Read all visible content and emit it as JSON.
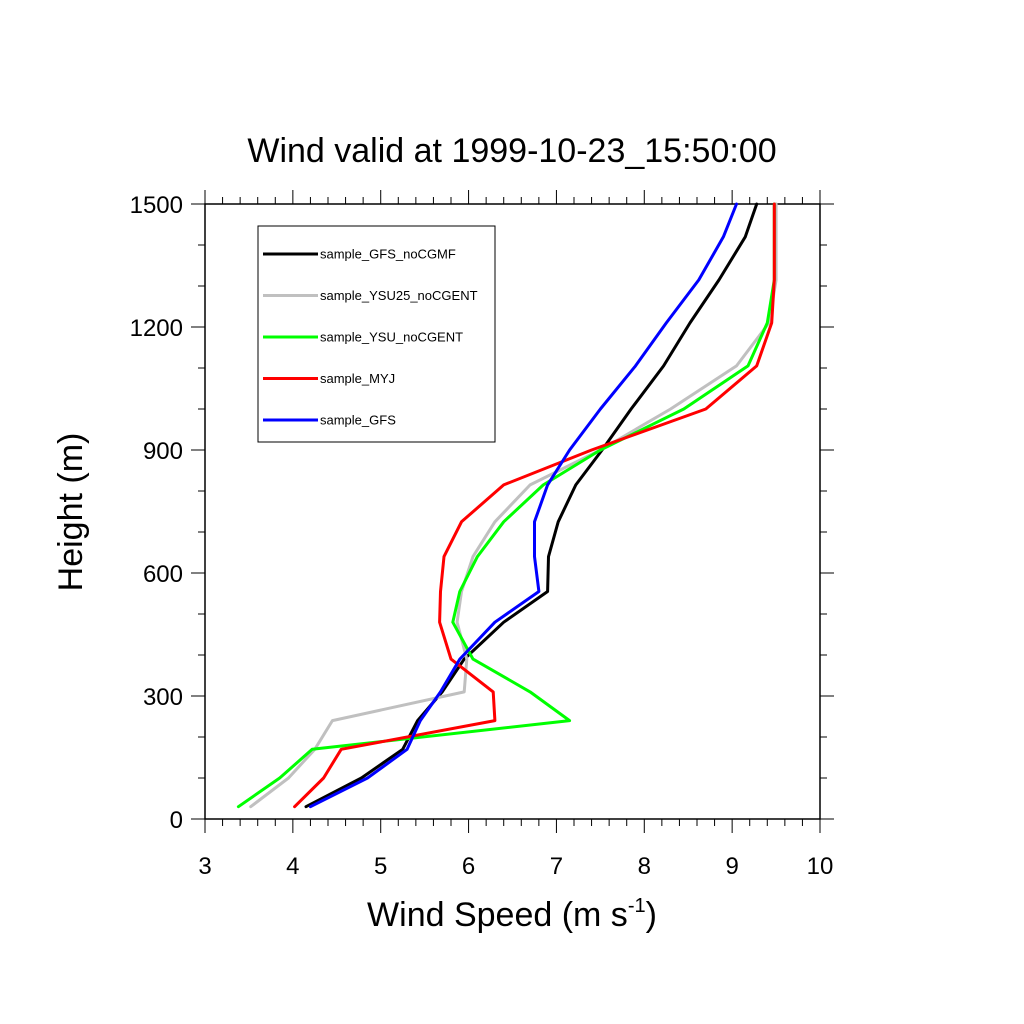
{
  "chart_data": {
    "type": "line",
    "title": "Wind valid at 1999-10-23_15:50:00",
    "xlabel": "Wind Speed (m s",
    "xlabel_sup": "-1",
    "xlabel_close": ")",
    "ylabel": "Height (m)",
    "xlim": [
      3,
      10
    ],
    "ylim": [
      0,
      1500
    ],
    "xticks": [
      3,
      4,
      5,
      6,
      7,
      8,
      9,
      10
    ],
    "yticks": [
      0,
      300,
      600,
      900,
      1200,
      1500
    ],
    "grid": false,
    "legend_position": "top-left",
    "series": [
      {
        "name": "sample_GFS_noCGMF",
        "color": "#000000",
        "points": [
          [
            4.15,
            30
          ],
          [
            4.78,
            100
          ],
          [
            5.25,
            170
          ],
          [
            5.42,
            240
          ],
          [
            5.7,
            310
          ],
          [
            5.95,
            390
          ],
          [
            6.4,
            480
          ],
          [
            6.9,
            555
          ],
          [
            6.91,
            640
          ],
          [
            7.02,
            725
          ],
          [
            7.22,
            815
          ],
          [
            7.52,
            900
          ],
          [
            7.85,
            1000
          ],
          [
            8.22,
            1105
          ],
          [
            8.52,
            1210
          ],
          [
            8.85,
            1315
          ],
          [
            9.15,
            1420
          ],
          [
            9.28,
            1500
          ]
        ]
      },
      {
        "name": "sample_YSU25_noCGENT",
        "color": "#c0c0c0",
        "points": [
          [
            3.52,
            30
          ],
          [
            3.95,
            100
          ],
          [
            4.25,
            170
          ],
          [
            4.45,
            240
          ],
          [
            5.95,
            310
          ],
          [
            5.98,
            390
          ],
          [
            5.87,
            480
          ],
          [
            5.92,
            555
          ],
          [
            6.05,
            640
          ],
          [
            6.3,
            725
          ],
          [
            6.7,
            815
          ],
          [
            7.5,
            900
          ],
          [
            8.3,
            1000
          ],
          [
            9.05,
            1105
          ],
          [
            9.42,
            1210
          ],
          [
            9.5,
            1315
          ],
          [
            9.5,
            1420
          ],
          [
            9.5,
            1500
          ]
        ]
      },
      {
        "name": "sample_YSU_noCGENT",
        "color": "#00ff00",
        "points": [
          [
            3.38,
            30
          ],
          [
            3.85,
            100
          ],
          [
            4.22,
            170
          ],
          [
            7.15,
            240
          ],
          [
            6.7,
            310
          ],
          [
            6.05,
            390
          ],
          [
            5.82,
            480
          ],
          [
            5.9,
            555
          ],
          [
            6.1,
            640
          ],
          [
            6.4,
            725
          ],
          [
            6.85,
            815
          ],
          [
            7.5,
            900
          ],
          [
            8.45,
            1000
          ],
          [
            9.18,
            1105
          ],
          [
            9.4,
            1210
          ],
          [
            9.48,
            1315
          ],
          [
            9.48,
            1420
          ],
          [
            9.48,
            1500
          ]
        ]
      },
      {
        "name": "sample_MYJ",
        "color": "#ff0000",
        "points": [
          [
            4.02,
            30
          ],
          [
            4.35,
            100
          ],
          [
            4.55,
            170
          ],
          [
            6.3,
            240
          ],
          [
            6.28,
            310
          ],
          [
            5.8,
            390
          ],
          [
            5.67,
            480
          ],
          [
            5.68,
            555
          ],
          [
            5.72,
            640
          ],
          [
            5.92,
            725
          ],
          [
            6.4,
            815
          ],
          [
            7.4,
            900
          ],
          [
            8.7,
            1000
          ],
          [
            9.28,
            1105
          ],
          [
            9.45,
            1210
          ],
          [
            9.48,
            1315
          ],
          [
            9.48,
            1420
          ],
          [
            9.48,
            1500
          ]
        ]
      },
      {
        "name": "sample_GFS",
        "color": "#0000ff",
        "points": [
          [
            4.2,
            30
          ],
          [
            4.85,
            100
          ],
          [
            5.3,
            170
          ],
          [
            5.45,
            240
          ],
          [
            5.68,
            310
          ],
          [
            5.9,
            390
          ],
          [
            6.3,
            480
          ],
          [
            6.8,
            555
          ],
          [
            6.75,
            640
          ],
          [
            6.75,
            725
          ],
          [
            6.9,
            815
          ],
          [
            7.15,
            900
          ],
          [
            7.5,
            1000
          ],
          [
            7.9,
            1105
          ],
          [
            8.25,
            1210
          ],
          [
            8.62,
            1315
          ],
          [
            8.9,
            1420
          ],
          [
            9.05,
            1500
          ]
        ]
      }
    ]
  }
}
